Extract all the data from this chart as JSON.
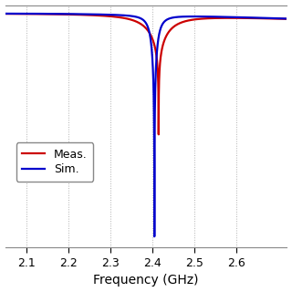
{
  "title": "",
  "xlabel": "Frequency (GHz)",
  "ylabel": "",
  "xlim": [
    2.05,
    2.72
  ],
  "ylim": [
    -55,
    2
  ],
  "xticks": [
    2.1,
    2.2,
    2.3,
    2.4,
    2.5,
    2.6
  ],
  "grid_color": "#b0b0b0",
  "grid_style": ":",
  "background_color": "#ffffff",
  "meas_color": "#cc0000",
  "sim_color": "#0000cc",
  "line_width": 1.6,
  "legend_labels": [
    "Meas.",
    "Sim."
  ],
  "legend_loc": "lower left",
  "f_min": 2.05,
  "f_max": 2.72,
  "f_res_meas": 2.415,
  "f_res_sim": 2.405,
  "Q_meas": 20,
  "Q_sim": 80,
  "meas_min_db": -28,
  "sim_min_db": -52
}
